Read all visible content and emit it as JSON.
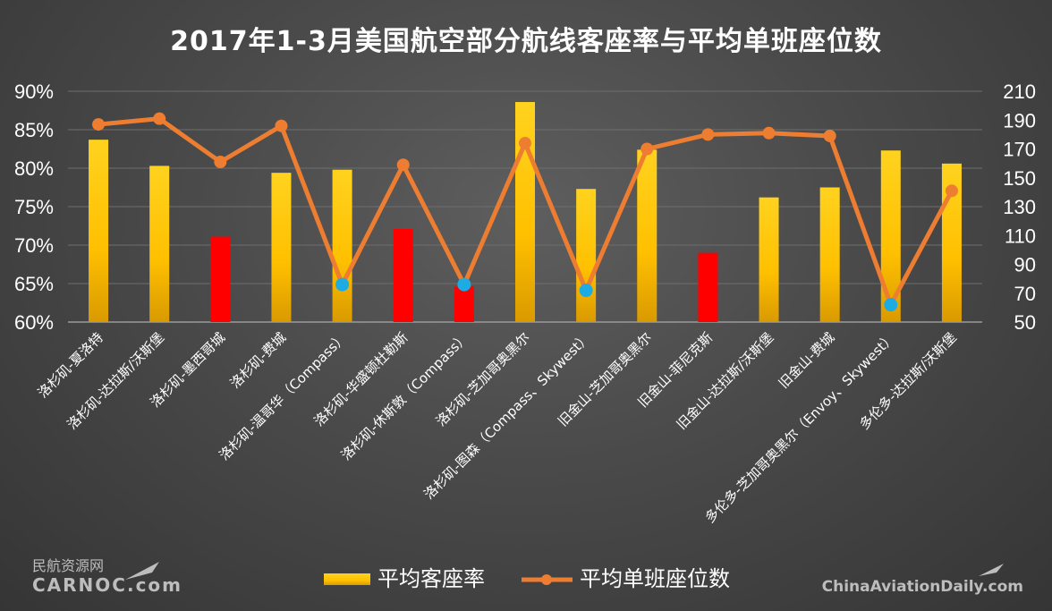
{
  "chart_data": {
    "type": "bar",
    "title": "2017年1-3月美国航空部分航线客座率与平均单班座位数",
    "categories": [
      "洛杉矶-夏洛特",
      "洛杉矶-达拉斯/沃斯堡",
      "洛杉矶-墨西哥城",
      "洛杉矶-费城",
      "洛杉矶-温哥华（Compass）",
      "洛杉矶-华盛顿杜勒斯",
      "洛杉矶-休斯敦（Compass）",
      "洛杉矶-芝加哥奥黑尔",
      "洛杉矶-图森（Compass、Skywest）",
      "旧金山-芝加哥奥黑尔",
      "旧金山-菲尼克斯",
      "旧金山-达拉斯/沃斯堡",
      "旧金山-费城",
      "多伦多-芝加哥奥黑尔（Envoy、Skywest）",
      "多伦多-达拉斯/沃斯堡"
    ],
    "series": [
      {
        "name": "平均客座率",
        "kind": "bar",
        "axis": "left",
        "values": [
          83.7,
          80.3,
          71.1,
          79.4,
          79.8,
          72.1,
          64.6,
          88.6,
          77.3,
          82.4,
          69.0,
          76.2,
          77.5,
          82.3,
          80.6
        ],
        "highlight": [
          false,
          false,
          true,
          false,
          false,
          true,
          true,
          false,
          false,
          false,
          true,
          false,
          false,
          false,
          false
        ]
      },
      {
        "name": "平均单班座位数",
        "kind": "line",
        "axis": "right",
        "values": [
          187,
          191,
          161,
          186,
          76,
          159,
          76,
          174,
          72,
          170,
          180,
          181,
          179,
          62,
          141
        ],
        "marker_blue": [
          false,
          false,
          false,
          false,
          true,
          false,
          true,
          false,
          true,
          false,
          false,
          false,
          false,
          true,
          false
        ]
      }
    ],
    "y_left": {
      "min": 60,
      "max": 90,
      "ticks": [
        "60%",
        "65%",
        "70%",
        "75%",
        "80%",
        "85%",
        "90%"
      ]
    },
    "y_right": {
      "min": 50,
      "max": 210,
      "ticks": [
        "50",
        "70",
        "90",
        "110",
        "130",
        "150",
        "170",
        "190",
        "210"
      ]
    },
    "grid": true,
    "legend_position": "bottom-center",
    "colors": {
      "bar": "#ffc000",
      "bar_highlight": "#ff0000",
      "line": "#ed7d31",
      "marker_blue": "#1cabe2",
      "grid": "#6e6e6e",
      "text": "#ffffff"
    }
  },
  "legend": {
    "bar_label": "平均客座率",
    "line_label": "平均单班座位数"
  },
  "watermarks": {
    "left_cn": "民航资源网",
    "left_en": "CARNOC.com",
    "right_en": "ChinaAviationDaily.com"
  }
}
